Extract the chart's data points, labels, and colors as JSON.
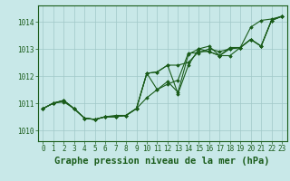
{
  "background_color": "#c8e8e8",
  "grid_color": "#a0c8c8",
  "line_color": "#1a5c1a",
  "title": "Graphe pression niveau de la mer (hPa)",
  "xlim": [
    -0.5,
    23.5
  ],
  "ylim": [
    1009.6,
    1014.6
  ],
  "yticks": [
    1010,
    1011,
    1012,
    1013,
    1014
  ],
  "xticks": [
    0,
    1,
    2,
    3,
    4,
    5,
    6,
    7,
    8,
    9,
    10,
    11,
    12,
    13,
    14,
    15,
    16,
    17,
    18,
    19,
    20,
    21,
    22,
    23
  ],
  "series": [
    [
      1010.8,
      1011.0,
      1011.1,
      1010.8,
      1010.45,
      1010.4,
      1010.5,
      1010.5,
      1010.55,
      1010.8,
      1011.2,
      1011.5,
      1011.7,
      1011.85,
      1012.85,
      1012.85,
      1013.0,
      1012.9,
      1013.0,
      1013.05,
      1013.8,
      1014.05,
      1014.1,
      1014.2
    ],
    [
      1010.8,
      1011.0,
      1011.1,
      1010.8,
      1010.45,
      1010.4,
      1010.5,
      1010.5,
      1010.55,
      1010.8,
      1012.1,
      1011.5,
      1011.8,
      1011.4,
      1012.8,
      1013.0,
      1012.9,
      1012.75,
      1013.0,
      1013.05,
      1013.35,
      1013.1,
      1014.05,
      1014.2
    ],
    [
      1010.8,
      1011.0,
      1011.1,
      1010.8,
      1010.45,
      1010.4,
      1010.5,
      1010.5,
      1010.55,
      1010.8,
      1012.1,
      1012.15,
      1012.4,
      1011.35,
      1012.4,
      1013.0,
      1013.1,
      1012.75,
      1013.05,
      1013.05,
      1013.35,
      1013.1,
      1014.05,
      1014.2
    ],
    [
      1010.8,
      1011.0,
      1011.05,
      1010.8,
      1010.45,
      1010.4,
      1010.5,
      1010.55,
      1010.55,
      1010.8,
      1012.1,
      1012.15,
      1012.4,
      1012.4,
      1012.5,
      1012.9,
      1012.9,
      1012.75,
      1012.75,
      1013.05,
      1013.35,
      1013.1,
      1014.05,
      1014.2
    ]
  ],
  "marker": "D",
  "marker_size": 1.8,
  "linewidth": 0.8,
  "title_fontsize": 7.5,
  "tick_fontsize": 5.5
}
